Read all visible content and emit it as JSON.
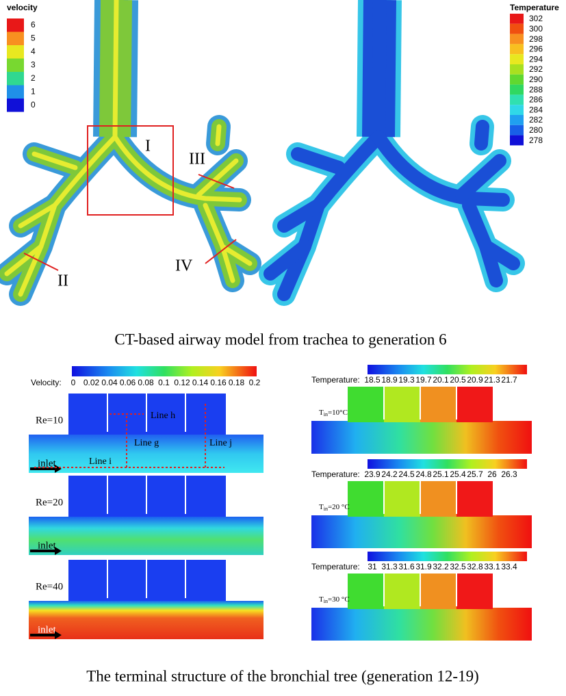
{
  "top": {
    "velocity_legend": {
      "title": "velocity",
      "ticks": [
        6,
        5,
        4,
        3,
        2,
        1,
        0
      ]
    },
    "temperature_legend": {
      "title": "Temperature",
      "ticks": [
        302,
        300,
        298,
        296,
        294,
        292,
        290,
        288,
        286,
        284,
        282,
        280,
        278
      ]
    },
    "region_labels": [
      "I",
      "II",
      "III",
      "IV"
    ],
    "caption": "CT-based airway model from trachea to generation 6"
  },
  "bottom": {
    "velocity_colorbar": {
      "title": "Velocity:",
      "ticks": [
        0,
        0.02,
        0.04,
        0.06,
        0.08,
        0.1,
        0.12,
        0.14,
        0.16,
        0.18,
        0.2
      ]
    },
    "velocity_panels": [
      {
        "label": "Re=10",
        "inlet": "inlet",
        "lines": [
          "Line h",
          "Line g",
          "Line i",
          "Line j"
        ]
      },
      {
        "label": "Re=20",
        "inlet": "inlet"
      },
      {
        "label": "Re=40",
        "inlet": "inlet"
      }
    ],
    "temperature_panels": [
      {
        "title": "Temperature:",
        "ticks": [
          18.5,
          18.9,
          19.3,
          19.7,
          20.1,
          20.5,
          20.9,
          21.3,
          21.7
        ],
        "inlet_label": {
          "symbol": "T",
          "subscript": "in",
          "rest": "=10°C"
        }
      },
      {
        "title": "Temperature:",
        "ticks": [
          23.9,
          24.2,
          24.5,
          24.8,
          25.1,
          25.4,
          25.7,
          26,
          26.3
        ],
        "inlet_label": {
          "symbol": "T",
          "subscript": "in",
          "rest": "=20 °C"
        }
      },
      {
        "title": "Temperature:",
        "ticks": [
          31,
          31.3,
          31.6,
          31.9,
          32.2,
          32.5,
          32.8,
          33.1,
          33.4
        ],
        "inlet_label": {
          "symbol": "T",
          "subscript": "in",
          "rest": "=30 °C"
        }
      }
    ],
    "caption": "The terminal structure of the bronchial tree (generation 12-19)"
  }
}
